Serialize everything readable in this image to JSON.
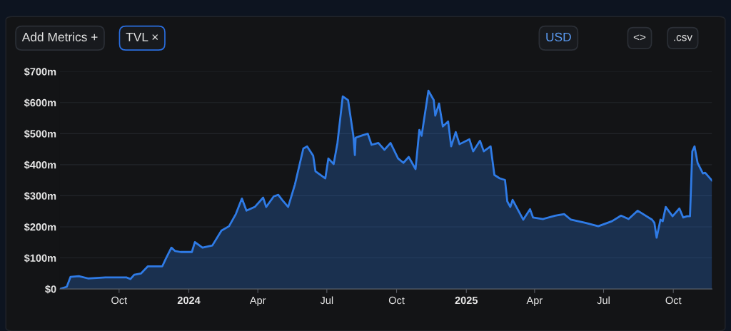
{
  "chart_data": {
    "type": "area",
    "annotations": [
      "Add Metrics +",
      "TVL ×",
      "USD",
      "<>",
      ".csv"
    ],
    "x": [
      "2023-07-15",
      "2023-07-24",
      "2023-07-29",
      "2023-08-09",
      "2023-08-21",
      "2023-09-13",
      "2023-10-11",
      "2023-10-16",
      "2023-10-21",
      "2023-10-30",
      "2023-11-08",
      "2023-11-27",
      "2023-12-02",
      "2023-12-09",
      "2023-12-14",
      "2023-12-21",
      "2024-01-05",
      "2024-01-09",
      "2024-01-19",
      "2024-02-01",
      "2024-02-13",
      "2024-02-23",
      "2024-03-03",
      "2024-03-11",
      "2024-03-17",
      "2024-03-28",
      "2024-04-08",
      "2024-04-12",
      "2024-04-22",
      "2024-04-28",
      "2024-05-03",
      "2024-05-11",
      "2024-05-20",
      "2024-05-31",
      "2024-06-05",
      "2024-06-13",
      "2024-06-16",
      "2024-06-29",
      "2024-07-03",
      "2024-07-10",
      "2024-07-15",
      "2024-07-22",
      "2024-07-29",
      "2024-08-05",
      "2024-08-07",
      "2024-08-08",
      "2024-08-15",
      "2024-08-24",
      "2024-08-29",
      "2024-09-07",
      "2024-09-15",
      "2024-09-23",
      "2024-10-03",
      "2024-10-10",
      "2024-10-17",
      "2024-10-26",
      "2024-10-31",
      "2024-11-03",
      "2024-11-12",
      "2024-11-19",
      "2024-11-21",
      "2024-11-26",
      "2024-12-01",
      "2024-12-08",
      "2024-12-12",
      "2024-12-18",
      "2024-12-23",
      "2025-01-05",
      "2025-01-10",
      "2025-01-19",
      "2025-01-24",
      "2025-02-02",
      "2025-02-07",
      "2025-02-14",
      "2025-02-21",
      "2025-02-24",
      "2025-02-28",
      "2025-03-03",
      "2025-03-17",
      "2025-03-26",
      "2025-03-30",
      "2025-04-12",
      "2025-04-28",
      "2025-05-10",
      "2025-05-19",
      "2025-06-07",
      "2025-06-24",
      "2025-07-12",
      "2025-07-24",
      "2025-08-03",
      "2025-08-15",
      "2025-09-03",
      "2025-09-06",
      "2025-09-09",
      "2025-09-14",
      "2025-09-17",
      "2025-09-21",
      "2025-09-30",
      "2025-10-09",
      "2025-10-14",
      "2025-10-19",
      "2025-10-23",
      "2025-10-26",
      "2025-10-29",
      "2025-11-02",
      "2025-11-09",
      "2025-11-12",
      "2025-11-21"
    ],
    "series": [
      {
        "color": "#2f7be6",
        "values": [
          0,
          7,
          39,
          41,
          34,
          37,
          37,
          32,
          46,
          50,
          73,
          73,
          99,
          133,
          122,
          119,
          119,
          151,
          133,
          140,
          188,
          202,
          241,
          291,
          252,
          264,
          294,
          264,
          298,
          303,
          287,
          264,
          337,
          452,
          459,
          429,
          379,
          356,
          420,
          402,
          470,
          620,
          608,
          493,
          431,
          487,
          493,
          500,
          464,
          470,
          448,
          470,
          420,
          406,
          425,
          386,
          512,
          493,
          638,
          608,
          558,
          597,
          523,
          539,
          459,
          505,
          466,
          482,
          443,
          477,
          443,
          459,
          367,
          356,
          351,
          282,
          264,
          287,
          223,
          257,
          230,
          225,
          236,
          241,
          223,
          213,
          202,
          218,
          236,
          225,
          252,
          223,
          213,
          165,
          223,
          218,
          264,
          234,
          259,
          230,
          234,
          234,
          443,
          459,
          406,
          372,
          374,
          349
        ]
      }
    ],
    "xlim": [
      "2023-07-15",
      "2025-11-21"
    ],
    "xticks": [
      {
        "value": "2023-10-01",
        "label": "Oct"
      },
      {
        "value": "2024-01-01",
        "label": "2024"
      },
      {
        "value": "2024-04-01",
        "label": "Apr"
      },
      {
        "value": "2024-07-01",
        "label": "Jul"
      },
      {
        "value": "2024-10-01",
        "label": "Oct"
      },
      {
        "value": "2025-01-01",
        "label": "2025"
      },
      {
        "value": "2025-04-01",
        "label": "Apr"
      },
      {
        "value": "2025-07-01",
        "label": "Jul"
      },
      {
        "value": "2025-10-01",
        "label": "Oct"
      }
    ],
    "ylim": [
      0,
      700
    ],
    "yticks": [
      {
        "value": 0,
        "label": "$0"
      },
      {
        "value": 100,
        "label": "$100m"
      },
      {
        "value": 200,
        "label": "$200m"
      },
      {
        "value": 300,
        "label": "$300m"
      },
      {
        "value": 400,
        "label": "$400m"
      },
      {
        "value": 500,
        "label": "$500m"
      },
      {
        "value": 600,
        "label": "$600m"
      },
      {
        "value": 700,
        "label": "$700m"
      }
    ],
    "grid": "y"
  }
}
